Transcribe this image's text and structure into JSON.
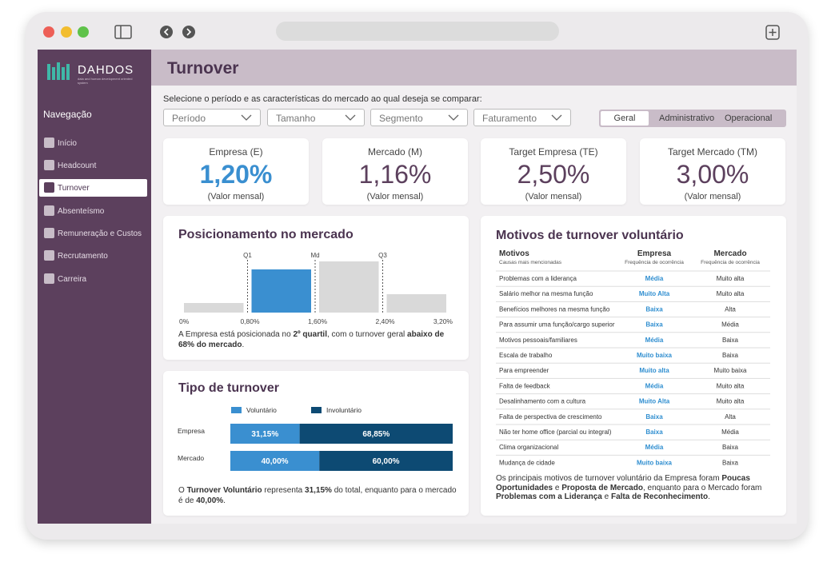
{
  "sidebar": {
    "logo": "DAHDOS",
    "logo_tagline": "data and human development oriented system",
    "nav_title": "Navegação",
    "items": [
      "Início",
      "Headcount",
      "Turnover",
      "Absenteísmo",
      "Remuneração e Custos",
      "Recrutamento",
      "Carreira"
    ]
  },
  "header": {
    "title": "Turnover"
  },
  "filters": {
    "prompt": "Selecione o período e as características do mercado ao qual deseja se comparar:",
    "dropdowns": [
      "Período",
      "Tamanho",
      "Segmento",
      "Faturamento"
    ],
    "tabs": [
      "Geral",
      "Administrativo",
      "Operacional"
    ]
  },
  "kpis": [
    {
      "label": "Empresa (E)",
      "value": "1,20%",
      "note": "(Valor mensal)"
    },
    {
      "label": "Mercado (M)",
      "value": "1,16%",
      "note": "(Valor mensal)"
    },
    {
      "label": "Target Empresa (TE)",
      "value": "2,50%",
      "note": "(Valor mensal)"
    },
    {
      "label": "Target Mercado (TM)",
      "value": "3,00%",
      "note": "(Valor mensal)"
    }
  ],
  "positioning": {
    "title": "Posicionamento no mercado",
    "chart": {
      "type": "histogram",
      "bins": [
        0,
        0.8,
        1.6,
        2.4,
        3.2
      ],
      "values": [
        12,
        54,
        64,
        23
      ],
      "colors": [
        "#d9d9d9",
        "#3a8fd0",
        "#d9d9d9",
        "#d9d9d9"
      ],
      "ylim": [
        0,
        80
      ],
      "xlim": [
        0,
        3.2
      ],
      "xticks": [
        {
          "value": 0,
          "label": "0%"
        },
        {
          "value": 0.8,
          "label": "0,80%"
        },
        {
          "value": 1.6,
          "label": "1,60%"
        },
        {
          "value": 2.4,
          "label": "2,40%"
        },
        {
          "value": 3.2,
          "label": "3,20%"
        }
      ],
      "markers": [
        {
          "label": "Q1",
          "value": 0.8
        },
        {
          "label": "Md",
          "value": 1.6
        },
        {
          "label": "Q3",
          "value": 2.4
        }
      ]
    },
    "caption": [
      "A Empresa está posicionada no ",
      "2º quartil",
      ", com o turnover geral ",
      "abaixo de 68% do mercado",
      "."
    ]
  },
  "turnover_type": {
    "title": "Tipo de turnover",
    "chart": {
      "type": "stacked-bar",
      "categories": [
        "Empresa",
        "Mercado"
      ],
      "xlim": [
        0,
        100
      ],
      "series": [
        {
          "name": "Voluntário",
          "color": "#3a8fd0",
          "values": [
            31.15,
            40
          ],
          "value_labels": [
            "31,15%",
            "40,00%"
          ]
        },
        {
          "name": "Involuntário",
          "color": "#0d4a73",
          "values": [
            68.85,
            60
          ],
          "value_labels": [
            "68,85%",
            "60,00%"
          ]
        }
      ]
    },
    "caption": [
      "O ",
      "Turnover Voluntário",
      " representa ",
      "31,15%",
      " do total, enquanto para o mercado é de ",
      "40,00%",
      "."
    ]
  },
  "reasons": {
    "title": "Motivos de turnover voluntário",
    "columns": [
      "Motivos",
      "Empresa",
      "Mercado"
    ],
    "subcolumns": [
      "Causas mais mencionadas",
      "Frequência de ocorrência",
      "Frequência de ocorrência"
    ],
    "rows": [
      [
        "Problemas com a liderança",
        "Média",
        "Muito alta"
      ],
      [
        "Salário melhor na mesma função",
        "Muito Alta",
        "Muito alta"
      ],
      [
        "Benefícios melhores na mesma função",
        "Baixa",
        "Alta"
      ],
      [
        "Para assumir uma função/cargo superior",
        "Baixa",
        "Média"
      ],
      [
        "Motivos pessoais/familiares",
        "Média",
        "Baixa"
      ],
      [
        "Escala de trabalho",
        "Muito baixa",
        "Baixa"
      ],
      [
        "Para empreender",
        "Muito alta",
        "Muito baixa"
      ],
      [
        "Falta de feedback",
        "Média",
        "Muito alta"
      ],
      [
        "Desalinhamento com a cultura",
        "Muito Alta",
        "Muito alta"
      ],
      [
        "Falta de perspectiva de crescimento",
        "Baixa",
        "Alta"
      ],
      [
        "Não ter home office (parcial ou integral)",
        "Baixa",
        "Média"
      ],
      [
        "Clima organizacional",
        "Média",
        "Baixa"
      ],
      [
        "Mudança de cidade",
        "Muito baixa",
        "Baixa"
      ]
    ],
    "caption": [
      "Os principais motivos de turnover voluntário da Empresa foram ",
      "Poucas Oportunidades",
      " e ",
      "Proposta de Mercado",
      ", enquanto para o Mercado foram ",
      "Problemas com a Liderança",
      " e ",
      "Falta de Reconhecimento",
      "."
    ]
  }
}
